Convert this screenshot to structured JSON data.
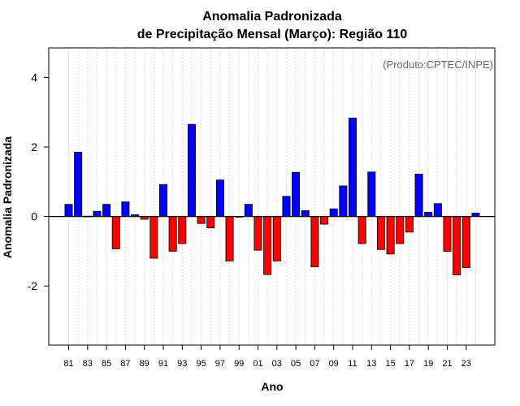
{
  "chart_data": {
    "type": "bar",
    "title_line1": "Anomalia Padronizada",
    "title_line2": "de Precipitação Mensal (Março): Região 110",
    "xlabel": "Ano",
    "ylabel": "Anomalia Padronizada",
    "annotation": "(Produto:CPTEC/INPE)",
    "ylim": [
      -3.7,
      4.85
    ],
    "yticks": [
      -2,
      0,
      2,
      4
    ],
    "ytick_labels": [
      "-2",
      "0",
      "2",
      "4"
    ],
    "grid": true,
    "categories": [
      "81",
      "82",
      "83",
      "84",
      "85",
      "86",
      "87",
      "88",
      "89",
      "90",
      "91",
      "92",
      "93",
      "94",
      "95",
      "96",
      "97",
      "98",
      "99",
      "00",
      "01",
      "02",
      "03",
      "04",
      "05",
      "06",
      "07",
      "08",
      "09",
      "10",
      "11",
      "12",
      "13",
      "14",
      "15",
      "16",
      "17",
      "18",
      "19",
      "20",
      "21",
      "22",
      "23",
      "24"
    ],
    "xtick_labels": [
      "81",
      "83",
      "85",
      "87",
      "89",
      "91",
      "93",
      "95",
      "97",
      "99",
      "01",
      "03",
      "05",
      "07",
      "09",
      "11",
      "13",
      "15",
      "17",
      "19",
      "21",
      "23"
    ],
    "values": [
      0.35,
      1.85,
      0.01,
      0.15,
      0.35,
      -0.93,
      0.42,
      0.05,
      -0.08,
      -1.2,
      0.92,
      -1.0,
      -0.78,
      2.65,
      -0.2,
      -0.33,
      1.05,
      -1.28,
      0.0,
      0.35,
      -0.97,
      -1.67,
      -1.28,
      0.58,
      1.27,
      0.17,
      -1.45,
      -0.22,
      0.22,
      0.88,
      2.83,
      -0.78,
      1.28,
      -0.95,
      -1.08,
      -0.78,
      -0.45,
      1.22,
      0.12,
      0.37,
      -1.0,
      -1.68,
      -1.47,
      0.1
    ],
    "positive_color": "#0000ff",
    "negative_color": "#ff0000",
    "zero_line_color": "#000000",
    "grid_color": "#d9d9d9"
  }
}
